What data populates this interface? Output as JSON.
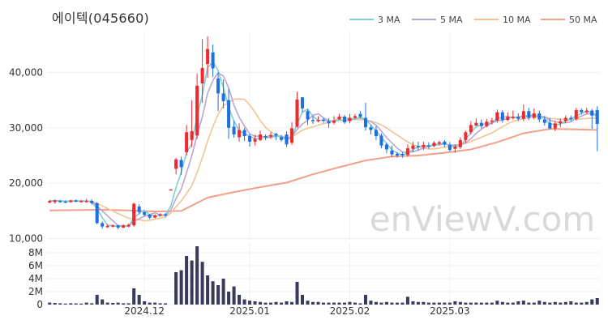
{
  "chart_data": {
    "type": "candlestick",
    "title": "에이텍(045660)",
    "watermark": "enViewV.com",
    "colors": {
      "up": "#f0292f",
      "down": "#1e6fe0",
      "volume": "#3a3a5c",
      "ma3": "#7fd0d0",
      "ma5": "#b9a6d3",
      "ma10": "#f3c493",
      "ma50": "#f2a08a"
    },
    "legend": [
      {
        "label": "3 MA",
        "color": "#7fd0d0"
      },
      {
        "label": "5 MA",
        "color": "#b9a6d3"
      },
      {
        "label": "10 MA",
        "color": "#f3c493"
      },
      {
        "label": "50 MA",
        "color": "#f2a08a"
      }
    ],
    "price_axis": {
      "ticks": [
        10000,
        20000,
        30000,
        40000
      ],
      "labels": [
        "10,000",
        "20,000",
        "30,000",
        "40,000"
      ],
      "ylim": [
        9800,
        47500
      ]
    },
    "volume_axis": {
      "ticks": [
        0,
        2000000,
        4000000,
        6000000,
        8000000
      ],
      "labels": [
        "0",
        "2M",
        "4M",
        "6M",
        "8M"
      ],
      "ylim": [
        0,
        9500000
      ]
    },
    "x_ticks": [
      {
        "index": 18,
        "label": "2024.12"
      },
      {
        "index": 38,
        "label": "2025.01"
      },
      {
        "index": 57,
        "label": "2025.02"
      },
      {
        "index": 76,
        "label": "2025.03"
      }
    ],
    "candles": [
      [
        16500,
        16800,
        16400,
        17000,
        300000
      ],
      [
        16600,
        16900,
        16300,
        17100,
        250000
      ],
      [
        16800,
        16700,
        16500,
        17000,
        200000
      ],
      [
        16700,
        16600,
        16400,
        16900,
        150000
      ],
      [
        16600,
        16900,
        16500,
        17000,
        200000
      ],
      [
        16900,
        16800,
        16600,
        17100,
        180000
      ],
      [
        16800,
        16800,
        16500,
        17000,
        150000
      ],
      [
        16700,
        16800,
        16500,
        17200,
        300000
      ],
      [
        16800,
        16400,
        16100,
        17100,
        200000
      ],
      [
        16400,
        12800,
        12600,
        16600,
        1500000
      ],
      [
        12800,
        12200,
        11800,
        13100,
        800000
      ],
      [
        12200,
        12300,
        11900,
        12600,
        300000
      ],
      [
        12300,
        12400,
        12000,
        12600,
        250000
      ],
      [
        12400,
        12000,
        11700,
        12500,
        300000
      ],
      [
        12000,
        12400,
        11900,
        12600,
        200000
      ],
      [
        12200,
        12500,
        12000,
        12700,
        200000
      ],
      [
        12400,
        16300,
        12100,
        16500,
        2500000
      ],
      [
        15800,
        14800,
        14400,
        16200,
        1500000
      ],
      [
        14800,
        14300,
        14000,
        14900,
        500000
      ],
      [
        14300,
        13800,
        13500,
        14500,
        300000
      ],
      [
        13800,
        14200,
        13700,
        14400,
        300000
      ],
      [
        14200,
        14400,
        14000,
        14600,
        200000
      ],
      [
        14400,
        14300,
        13900,
        14600,
        200000
      ],
      [
        18900,
        18900,
        18900,
        18900,
        0
      ],
      [
        22600,
        24300,
        21600,
        24600,
        5000000
      ],
      [
        24200,
        22900,
        21500,
        24800,
        5300000
      ],
      [
        25600,
        29200,
        25000,
        30500,
        7500000
      ],
      [
        27800,
        29400,
        26500,
        35000,
        6800000
      ],
      [
        28600,
        37600,
        28000,
        39800,
        9000000
      ],
      [
        38000,
        40800,
        34500,
        46000,
        6600000
      ],
      [
        41500,
        44200,
        39000,
        46500,
        4500000
      ],
      [
        43600,
        40700,
        39200,
        45000,
        3600000
      ],
      [
        38900,
        36200,
        33000,
        40000,
        3000000
      ],
      [
        36200,
        34800,
        33500,
        38700,
        4000000
      ],
      [
        35000,
        30000,
        28000,
        37000,
        2000000
      ],
      [
        30200,
        28800,
        28200,
        31200,
        2800000
      ],
      [
        28300,
        29600,
        27500,
        30800,
        1500000
      ],
      [
        29600,
        28500,
        27600,
        30000,
        800000
      ],
      [
        28500,
        27500,
        26600,
        28900,
        600000
      ],
      [
        27500,
        28000,
        26800,
        28700,
        500000
      ],
      [
        27800,
        28800,
        27600,
        29500,
        400000
      ],
      [
        28500,
        28300,
        27800,
        28800,
        300000
      ],
      [
        28400,
        28700,
        28000,
        29200,
        300000
      ],
      [
        28900,
        28600,
        27800,
        29100,
        400000
      ],
      [
        28300,
        27800,
        27500,
        28700,
        300000
      ],
      [
        28800,
        27000,
        26500,
        29400,
        500000
      ],
      [
        27300,
        29900,
        26900,
        31000,
        400000
      ],
      [
        30200,
        35100,
        30000,
        36500,
        3500000
      ],
      [
        35500,
        33500,
        32700,
        35500,
        1500000
      ],
      [
        33000,
        31500,
        30500,
        33400,
        600000
      ],
      [
        31400,
        31200,
        30700,
        32200,
        400000
      ],
      [
        31300,
        31400,
        31000,
        32100,
        400000
      ],
      [
        31500,
        31400,
        30900,
        31800,
        300000
      ],
      [
        31200,
        30800,
        30000,
        31700,
        300000
      ],
      [
        30900,
        31300,
        30600,
        32100,
        300000
      ],
      [
        31500,
        32000,
        31500,
        32500,
        300000
      ],
      [
        32000,
        31000,
        30700,
        32300,
        300000
      ],
      [
        31200,
        31800,
        30800,
        32500,
        400000
      ],
      [
        31800,
        32100,
        31600,
        32500,
        300000
      ],
      [
        32500,
        32000,
        31700,
        33000,
        200000
      ],
      [
        31800,
        30100,
        29500,
        34500,
        1500000
      ],
      [
        30100,
        29600,
        28800,
        30500,
        600000
      ],
      [
        29600,
        28500,
        27800,
        30300,
        400000
      ],
      [
        28600,
        26800,
        26300,
        29000,
        300000
      ],
      [
        27000,
        26100,
        25400,
        27300,
        400000
      ],
      [
        25900,
        25200,
        24700,
        26800,
        300000
      ],
      [
        25300,
        25000,
        24600,
        25600,
        300000
      ],
      [
        25300,
        25100,
        24600,
        25600,
        300000
      ],
      [
        25100,
        26300,
        24800,
        27000,
        1200000
      ],
      [
        26200,
        26800,
        25600,
        27500,
        500000
      ],
      [
        26700,
        26600,
        25900,
        27500,
        400000
      ],
      [
        26500,
        26900,
        26000,
        27500,
        400000
      ],
      [
        26800,
        26700,
        26200,
        27400,
        300000
      ],
      [
        26700,
        27300,
        26500,
        27600,
        300000
      ],
      [
        27200,
        27400,
        26800,
        27700,
        300000
      ],
      [
        27500,
        27000,
        26500,
        27800,
        300000
      ],
      [
        26900,
        26000,
        25700,
        27400,
        300000
      ],
      [
        26200,
        26600,
        25500,
        27000,
        500000
      ],
      [
        26500,
        27800,
        26200,
        28300,
        400000
      ],
      [
        27800,
        29200,
        27300,
        29500,
        300000
      ],
      [
        29200,
        30500,
        28800,
        31200,
        300000
      ],
      [
        30400,
        30900,
        30300,
        31700,
        300000
      ],
      [
        30900,
        30300,
        29900,
        31500,
        300000
      ],
      [
        30300,
        31100,
        30100,
        31600,
        300000
      ],
      [
        31100,
        31300,
        30600,
        31800,
        300000
      ],
      [
        31300,
        32800,
        30900,
        33300,
        600000
      ],
      [
        32800,
        31400,
        30900,
        33200,
        400000
      ],
      [
        31400,
        32000,
        31200,
        32800,
        300000
      ],
      [
        32000,
        32000,
        31500,
        33100,
        300000
      ],
      [
        32000,
        31600,
        31200,
        32600,
        500000
      ],
      [
        31600,
        33000,
        31200,
        34200,
        600000
      ],
      [
        33000,
        31800,
        31400,
        33600,
        300000
      ],
      [
        31800,
        32600,
        31500,
        33500,
        300000
      ],
      [
        32600,
        31500,
        31000,
        33100,
        600000
      ],
      [
        31500,
        30900,
        30400,
        32100,
        400000
      ],
      [
        30900,
        29900,
        29700,
        31800,
        300000
      ],
      [
        29900,
        30800,
        29400,
        31200,
        400000
      ],
      [
        30800,
        31200,
        30100,
        31700,
        300000
      ],
      [
        31200,
        31800,
        30800,
        32200,
        400000
      ],
      [
        31800,
        31600,
        31200,
        32200,
        500000
      ],
      [
        31600,
        33200,
        31300,
        33600,
        300000
      ],
      [
        33200,
        32800,
        32400,
        33500,
        300000
      ],
      [
        32800,
        33100,
        32500,
        33600,
        400000
      ],
      [
        33100,
        32200,
        29800,
        33400,
        800000
      ],
      [
        33200,
        30700,
        25800,
        33900,
        1000000
      ]
    ],
    "ma50": [
      [
        0,
        15100
      ],
      [
        10,
        15200
      ],
      [
        15,
        15100
      ],
      [
        20,
        14900
      ],
      [
        25,
        15000
      ],
      [
        30,
        17400
      ],
      [
        35,
        18400
      ],
      [
        40,
        19300
      ],
      [
        45,
        20100
      ],
      [
        50,
        21600
      ],
      [
        55,
        22900
      ],
      [
        60,
        24100
      ],
      [
        65,
        24800
      ],
      [
        70,
        25000
      ],
      [
        75,
        25500
      ],
      [
        80,
        26100
      ],
      [
        85,
        27400
      ],
      [
        90,
        29000
      ],
      [
        95,
        29800
      ],
      [
        100,
        29700
      ],
      [
        104,
        29600
      ]
    ]
  }
}
